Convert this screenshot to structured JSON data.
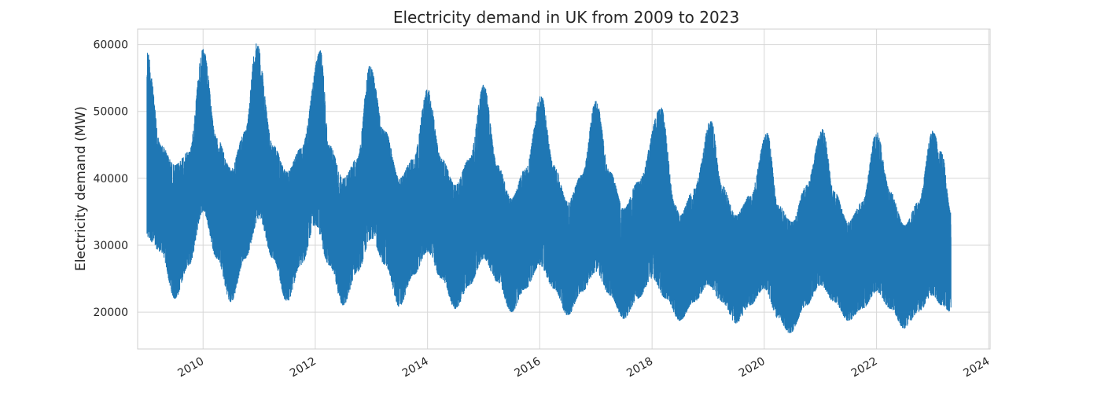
{
  "chart_data": {
    "type": "line",
    "title": "Electricity demand in UK from 2009 to 2023",
    "xlabel": "",
    "ylabel": "Electricity demand (MW)",
    "x_range": [
      "2008-11-01",
      "2024-01-10"
    ],
    "ylim": [
      14500,
      62300
    ],
    "x_ticks": [
      "2010",
      "2012",
      "2014",
      "2016",
      "2018",
      "2020",
      "2022",
      "2024"
    ],
    "y_ticks": [
      20000,
      30000,
      40000,
      50000,
      60000
    ],
    "y_tick_labels": [
      "20000",
      "30000",
      "40000",
      "50000",
      "60000"
    ],
    "grid": true,
    "series_color": "#1f77b4",
    "series": [
      {
        "x_start": "2009-01-01",
        "x_end": "2023-04-30",
        "upper_envelope": [
          [
            "2009-01-01",
            59000
          ],
          [
            "2009-04-01",
            45000
          ],
          [
            "2009-07-01",
            42000
          ],
          [
            "2009-10-01",
            44000
          ],
          [
            "2010-01-01",
            59300
          ],
          [
            "2010-04-01",
            46000
          ],
          [
            "2010-07-01",
            41500
          ],
          [
            "2010-10-01",
            47000
          ],
          [
            "2010-12-15",
            60300
          ],
          [
            "2011-04-01",
            45000
          ],
          [
            "2011-07-01",
            41000
          ],
          [
            "2011-10-01",
            44500
          ],
          [
            "2012-02-05",
            59100
          ],
          [
            "2012-04-01",
            45000
          ],
          [
            "2012-07-01",
            40000
          ],
          [
            "2012-10-01",
            43000
          ],
          [
            "2012-12-20",
            56800
          ],
          [
            "2013-04-01",
            47000
          ],
          [
            "2013-07-01",
            40000
          ],
          [
            "2013-10-01",
            43000
          ],
          [
            "2014-01-01",
            53400
          ],
          [
            "2014-04-01",
            43000
          ],
          [
            "2014-07-01",
            39000
          ],
          [
            "2014-10-01",
            43000
          ],
          [
            "2015-01-01",
            54000
          ],
          [
            "2015-04-01",
            42000
          ],
          [
            "2015-07-01",
            37000
          ],
          [
            "2015-10-01",
            41500
          ],
          [
            "2016-01-10",
            52400
          ],
          [
            "2016-04-01",
            42000
          ],
          [
            "2016-07-01",
            36500
          ],
          [
            "2016-10-01",
            40500
          ],
          [
            "2017-01-01",
            51700
          ],
          [
            "2017-04-01",
            41000
          ],
          [
            "2017-07-01",
            35500
          ],
          [
            "2017-10-01",
            39500
          ],
          [
            "2018-03-01",
            50600
          ],
          [
            "2018-06-01",
            36000
          ],
          [
            "2018-07-01",
            34500
          ],
          [
            "2018-10-01",
            38500
          ],
          [
            "2019-01-20",
            48700
          ],
          [
            "2019-04-01",
            39000
          ],
          [
            "2019-07-01",
            34500
          ],
          [
            "2019-10-01",
            37500
          ],
          [
            "2020-01-20",
            46800
          ],
          [
            "2020-04-01",
            36000
          ],
          [
            "2020-07-01",
            33500
          ],
          [
            "2020-10-01",
            39000
          ],
          [
            "2021-01-15",
            47400
          ],
          [
            "2021-04-01",
            38000
          ],
          [
            "2021-07-01",
            33500
          ],
          [
            "2021-10-01",
            36500
          ],
          [
            "2022-01-01",
            47000
          ],
          [
            "2022-04-01",
            38000
          ],
          [
            "2022-07-01",
            33000
          ],
          [
            "2022-10-01",
            36500
          ],
          [
            "2023-01-01",
            47100
          ],
          [
            "2023-03-01",
            44000
          ],
          [
            "2023-04-30",
            35000
          ]
        ],
        "lower_envelope": [
          [
            "2009-01-01",
            31000
          ],
          [
            "2009-04-01",
            29000
          ],
          [
            "2009-07-01",
            22000
          ],
          [
            "2009-10-01",
            27000
          ],
          [
            "2010-01-01",
            35000
          ],
          [
            "2010-04-01",
            28000
          ],
          [
            "2010-07-01",
            21500
          ],
          [
            "2010-10-01",
            28000
          ],
          [
            "2011-01-01",
            34000
          ],
          [
            "2011-04-01",
            28000
          ],
          [
            "2011-07-01",
            21500
          ],
          [
            "2011-10-01",
            27000
          ],
          [
            "2012-01-01",
            33000
          ],
          [
            "2012-04-01",
            27000
          ],
          [
            "2012-07-01",
            21000
          ],
          [
            "2012-10-01",
            26000
          ],
          [
            "2013-01-01",
            31000
          ],
          [
            "2013-04-01",
            27000
          ],
          [
            "2013-07-01",
            20800
          ],
          [
            "2013-10-01",
            25500
          ],
          [
            "2014-01-01",
            29000
          ],
          [
            "2014-04-01",
            25000
          ],
          [
            "2014-07-01",
            20500
          ],
          [
            "2014-10-01",
            24000
          ],
          [
            "2015-01-01",
            28000
          ],
          [
            "2015-04-01",
            24500
          ],
          [
            "2015-07-01",
            20000
          ],
          [
            "2015-10-01",
            23500
          ],
          [
            "2016-01-01",
            27000
          ],
          [
            "2016-04-01",
            23500
          ],
          [
            "2016-07-01",
            19500
          ],
          [
            "2016-10-01",
            23000
          ],
          [
            "2017-01-01",
            26000
          ],
          [
            "2017-04-01",
            22500
          ],
          [
            "2017-07-01",
            19000
          ],
          [
            "2017-10-01",
            22000
          ],
          [
            "2018-01-01",
            25000
          ],
          [
            "2018-04-01",
            22000
          ],
          [
            "2018-07-01",
            18700
          ],
          [
            "2018-10-01",
            21500
          ],
          [
            "2019-01-01",
            24000
          ],
          [
            "2019-04-01",
            21500
          ],
          [
            "2019-07-01",
            18300
          ],
          [
            "2019-10-01",
            21000
          ],
          [
            "2020-01-01",
            23500
          ],
          [
            "2020-04-01",
            19000
          ],
          [
            "2020-06-15",
            16800
          ],
          [
            "2020-10-01",
            21000
          ],
          [
            "2021-01-01",
            24000
          ],
          [
            "2021-04-01",
            21500
          ],
          [
            "2021-07-01",
            18700
          ],
          [
            "2021-10-01",
            20500
          ],
          [
            "2022-01-01",
            23000
          ],
          [
            "2022-04-01",
            20500
          ],
          [
            "2022-07-01",
            17500
          ],
          [
            "2022-10-01",
            20000
          ],
          [
            "2023-01-01",
            22500
          ],
          [
            "2023-03-01",
            21000
          ],
          [
            "2023-04-30",
            20000
          ]
        ]
      }
    ]
  }
}
